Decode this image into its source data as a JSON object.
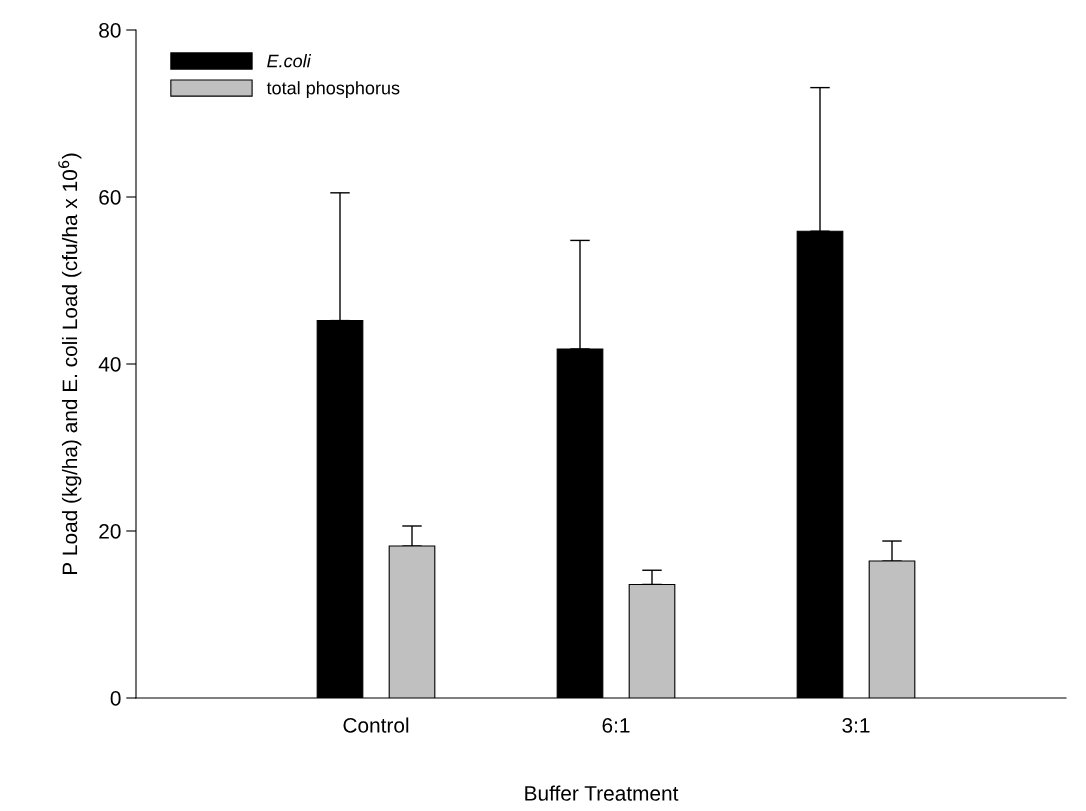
{
  "chart_data": {
    "type": "bar",
    "xlabel": "Buffer Treatment",
    "ylabel": "P Load (kg/ha) and E. coli Load (cfu/ha x 10$^{6}$)",
    "categories": [
      "Control",
      "6:1",
      "3:1"
    ],
    "series": [
      {
        "name": "E.coli",
        "color": "#000000",
        "values": [
          45.2,
          41.8,
          55.9
        ],
        "errors": [
          [
            45.2,
            60.5
          ],
          [
            41.8,
            54.8
          ],
          [
            55.9,
            73.1
          ]
        ]
      },
      {
        "name": "total phosphorus",
        "color": "#c0c0c0",
        "values": [
          18.2,
          13.6,
          16.4
        ],
        "errors": [
          [
            18.2,
            20.6
          ],
          [
            13.6,
            15.3
          ],
          [
            16.4,
            18.8
          ]
        ]
      }
    ],
    "ylim": [
      0,
      80
    ],
    "yticks": [
      0,
      20,
      40,
      60,
      80
    ],
    "grid": false,
    "legend": "top left"
  }
}
